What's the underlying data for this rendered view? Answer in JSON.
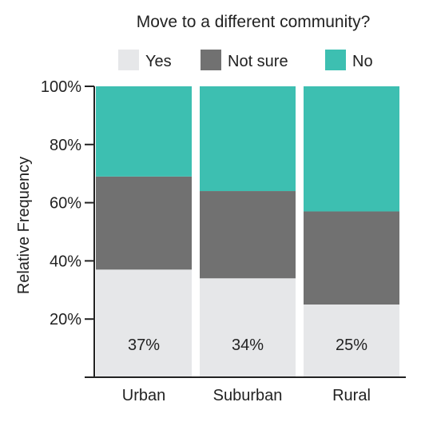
{
  "chart_data": {
    "type": "bar",
    "stacked": true,
    "title": "",
    "legend": {
      "title": "Move to a different community?",
      "position": "top-center",
      "entries": [
        {
          "label": "Yes",
          "color": "#e6e7e9"
        },
        {
          "label": "Not sure",
          "color": "#717171"
        },
        {
          "label": "No",
          "color": "#3dbfb1"
        }
      ]
    },
    "ylabel": "Relative Frequency",
    "xlabel": "",
    "ylim": [
      0,
      100
    ],
    "yticks": [
      20,
      40,
      60,
      80,
      100
    ],
    "ytick_labels": [
      "20%",
      "40%",
      "60%",
      "80%",
      "100%"
    ],
    "categories": [
      "Urban",
      "Suburban",
      "Rural"
    ],
    "series": [
      {
        "name": "Yes",
        "values": [
          37,
          34,
          25
        ],
        "data_labels": [
          "37%",
          "34%",
          "25%"
        ]
      },
      {
        "name": "Not sure",
        "values": [
          32,
          30,
          32
        ]
      },
      {
        "name": "No",
        "values": [
          31,
          36,
          43
        ]
      }
    ],
    "grid": false
  }
}
